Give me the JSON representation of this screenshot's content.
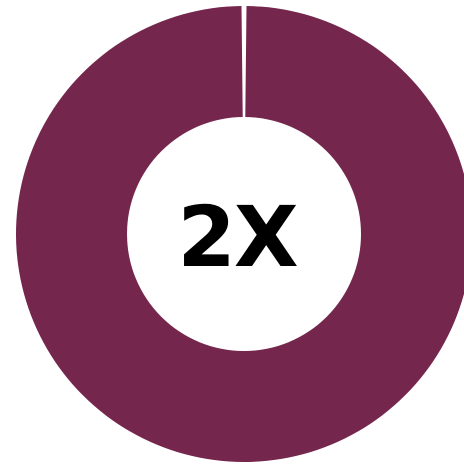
{
  "chart_data": {
    "type": "pie",
    "variant": "donut",
    "center_label": "2X",
    "slices": [
      {
        "value": 100,
        "color": "#75264d"
      }
    ],
    "gap_at": "top",
    "background": "#ffffff"
  }
}
